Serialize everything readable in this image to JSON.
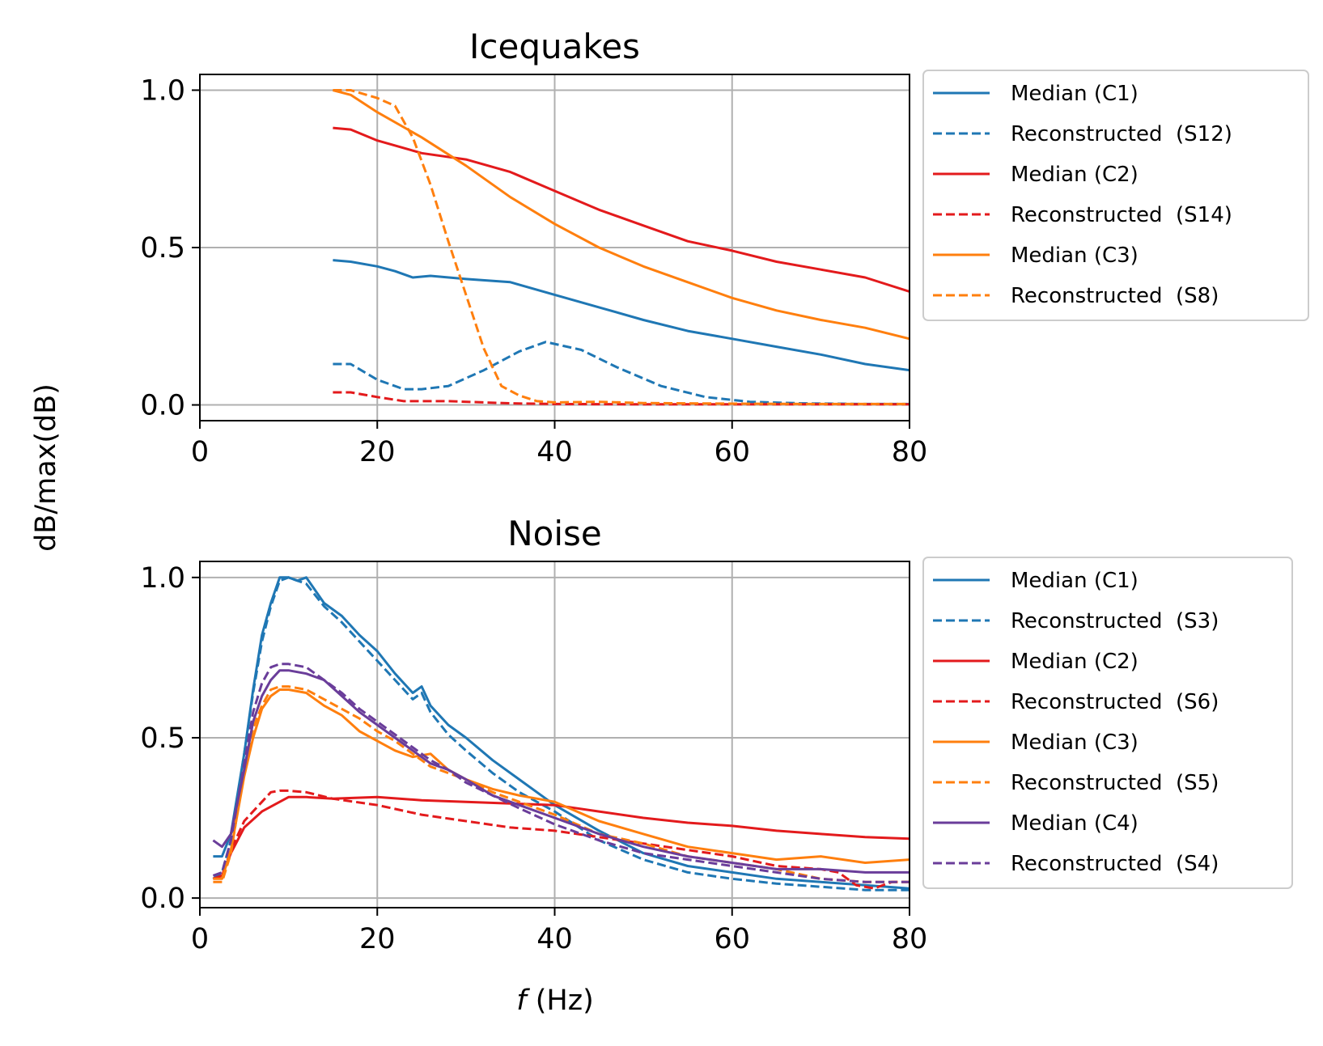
{
  "figure": {
    "ylabel": "dB/max(dB)",
    "xlabel_italic": "f",
    "xlabel_rest": " (Hz)"
  },
  "colors": {
    "blue": "#1f77b4",
    "red": "#e31a1c",
    "orange": "#ff7f0e",
    "purple": "#6a3d9a",
    "grid": "#b0b0b0"
  },
  "chart_data": [
    {
      "type": "line",
      "title": "Icequakes",
      "xlim": [
        0,
        80
      ],
      "ylim": [
        -0.05,
        1.05
      ],
      "xticks": [
        0,
        20,
        40,
        60,
        80
      ],
      "yticks": [
        0.0,
        0.5,
        1.0
      ],
      "grid": true,
      "legend_position": "outside-right",
      "series": [
        {
          "name": "Median (C1)",
          "color": "blue",
          "dash": false,
          "x": [
            15,
            17,
            20,
            22,
            24,
            26,
            30,
            35,
            40,
            45,
            50,
            55,
            60,
            65,
            70,
            75,
            80
          ],
          "y": [
            0.46,
            0.455,
            0.44,
            0.425,
            0.405,
            0.41,
            0.4,
            0.39,
            0.35,
            0.31,
            0.27,
            0.235,
            0.21,
            0.185,
            0.16,
            0.13,
            0.11
          ]
        },
        {
          "name": "Reconstructed  (S12)",
          "color": "blue",
          "dash": true,
          "x": [
            15,
            17,
            20,
            23,
            25,
            28,
            32,
            36,
            39,
            43,
            47,
            52,
            57,
            62,
            68,
            75,
            80
          ],
          "y": [
            0.13,
            0.13,
            0.08,
            0.05,
            0.05,
            0.06,
            0.11,
            0.17,
            0.2,
            0.175,
            0.12,
            0.06,
            0.025,
            0.01,
            0.005,
            0.003,
            0.003
          ]
        },
        {
          "name": "Median (C2)",
          "color": "red",
          "dash": false,
          "x": [
            15,
            17,
            20,
            25,
            30,
            35,
            40,
            45,
            50,
            55,
            60,
            65,
            70,
            75,
            80
          ],
          "y": [
            0.88,
            0.875,
            0.84,
            0.8,
            0.78,
            0.74,
            0.68,
            0.62,
            0.57,
            0.52,
            0.49,
            0.455,
            0.43,
            0.405,
            0.36
          ]
        },
        {
          "name": "Reconstructed  (S14)",
          "color": "red",
          "dash": true,
          "x": [
            15,
            17,
            20,
            23,
            28,
            35,
            40,
            50,
            60,
            70,
            80
          ],
          "y": [
            0.04,
            0.04,
            0.025,
            0.012,
            0.012,
            0.005,
            0.003,
            0.002,
            0.002,
            0.002,
            0.002
          ]
        },
        {
          "name": "Median (C3)",
          "color": "orange",
          "dash": false,
          "x": [
            15,
            17,
            20,
            25,
            30,
            35,
            40,
            45,
            50,
            55,
            60,
            65,
            70,
            75,
            80
          ],
          "y": [
            1.0,
            0.985,
            0.93,
            0.85,
            0.76,
            0.66,
            0.575,
            0.5,
            0.44,
            0.39,
            0.34,
            0.3,
            0.27,
            0.245,
            0.21
          ]
        },
        {
          "name": "Reconstructed  (S8)",
          "color": "orange",
          "dash": true,
          "x": [
            15,
            17,
            20,
            22,
            24,
            26,
            28,
            30,
            32,
            34,
            36,
            38,
            40,
            45,
            50,
            60,
            70,
            80
          ],
          "y": [
            1.0,
            1.0,
            0.975,
            0.95,
            0.85,
            0.7,
            0.52,
            0.35,
            0.18,
            0.06,
            0.03,
            0.012,
            0.008,
            0.01,
            0.006,
            0.004,
            0.003,
            0.003
          ]
        }
      ]
    },
    {
      "type": "line",
      "title": "Noise",
      "xlabel": "f (Hz)",
      "xlim": [
        0,
        80
      ],
      "ylim": [
        -0.03,
        1.05
      ],
      "xticks": [
        0,
        20,
        40,
        60,
        80
      ],
      "yticks": [
        0.0,
        0.5,
        1.0
      ],
      "grid": true,
      "legend_position": "outside-right",
      "series": [
        {
          "name": "Median (C1)",
          "color": "blue",
          "dash": false,
          "x": [
            1.5,
            2.5,
            3.5,
            5,
            6,
            7,
            8,
            9,
            10,
            11,
            12,
            14,
            16,
            18,
            20,
            22,
            24,
            25,
            26,
            28,
            30,
            33,
            36,
            40,
            45,
            50,
            55,
            60,
            65,
            70,
            75,
            80
          ],
          "y": [
            0.13,
            0.13,
            0.2,
            0.45,
            0.65,
            0.82,
            0.92,
            1.0,
            1.0,
            0.99,
            1.0,
            0.92,
            0.88,
            0.82,
            0.77,
            0.7,
            0.64,
            0.66,
            0.6,
            0.54,
            0.5,
            0.43,
            0.37,
            0.29,
            0.21,
            0.14,
            0.1,
            0.08,
            0.06,
            0.05,
            0.04,
            0.03
          ]
        },
        {
          "name": "Reconstructed  (S3)",
          "color": "blue",
          "dash": true,
          "x": [
            1.5,
            2.5,
            3.5,
            5,
            6,
            7,
            8,
            9,
            10,
            11,
            12,
            14,
            16,
            18,
            20,
            22,
            24,
            25,
            26,
            28,
            30,
            33,
            36,
            40,
            45,
            50,
            55,
            60,
            65,
            70,
            75,
            80
          ],
          "y": [
            0.06,
            0.08,
            0.18,
            0.45,
            0.64,
            0.8,
            0.91,
            0.99,
            1.0,
            0.99,
            0.98,
            0.91,
            0.86,
            0.8,
            0.74,
            0.68,
            0.62,
            0.64,
            0.58,
            0.51,
            0.46,
            0.39,
            0.33,
            0.27,
            0.18,
            0.12,
            0.08,
            0.06,
            0.045,
            0.035,
            0.025,
            0.025
          ]
        },
        {
          "name": "Median (C2)",
          "color": "red",
          "dash": false,
          "x": [
            1.5,
            2.5,
            3.5,
            5,
            7,
            9,
            10,
            12,
            15,
            20,
            25,
            30,
            35,
            40,
            45,
            50,
            55,
            60,
            65,
            70,
            75,
            80
          ],
          "y": [
            0.06,
            0.07,
            0.14,
            0.22,
            0.27,
            0.3,
            0.315,
            0.315,
            0.31,
            0.315,
            0.305,
            0.3,
            0.295,
            0.29,
            0.27,
            0.25,
            0.235,
            0.225,
            0.21,
            0.2,
            0.19,
            0.185
          ]
        },
        {
          "name": "Reconstructed  (S6)",
          "color": "red",
          "dash": true,
          "x": [
            1.5,
            2.5,
            3.5,
            5,
            7,
            8,
            9,
            10,
            12,
            15,
            20,
            25,
            30,
            35,
            40,
            45,
            50,
            55,
            60,
            65,
            70,
            72,
            74,
            76,
            78,
            80
          ],
          "y": [
            0.06,
            0.07,
            0.15,
            0.24,
            0.3,
            0.33,
            0.335,
            0.335,
            0.33,
            0.31,
            0.29,
            0.26,
            0.24,
            0.22,
            0.21,
            0.19,
            0.17,
            0.15,
            0.13,
            0.1,
            0.09,
            0.08,
            0.04,
            0.03,
            0.05,
            0.05
          ]
        },
        {
          "name": "Median (C3)",
          "color": "orange",
          "dash": false,
          "x": [
            1.5,
            2.5,
            3.5,
            5,
            6,
            7,
            8,
            9,
            10,
            12,
            14,
            16,
            18,
            20,
            22,
            24,
            26,
            28,
            30,
            33,
            36,
            40,
            45,
            50,
            55,
            60,
            65,
            70,
            75,
            80
          ],
          "y": [
            0.06,
            0.06,
            0.15,
            0.38,
            0.5,
            0.59,
            0.63,
            0.65,
            0.65,
            0.64,
            0.6,
            0.57,
            0.52,
            0.49,
            0.46,
            0.44,
            0.45,
            0.4,
            0.37,
            0.34,
            0.32,
            0.3,
            0.24,
            0.2,
            0.16,
            0.14,
            0.12,
            0.13,
            0.11,
            0.12
          ]
        },
        {
          "name": "Reconstructed  (S5)",
          "color": "orange",
          "dash": true,
          "x": [
            1.5,
            2.5,
            3.5,
            5,
            6,
            7,
            8,
            9,
            10,
            12,
            14,
            16,
            18,
            20,
            22,
            24,
            26,
            28,
            30,
            33,
            36,
            40,
            45,
            50,
            55,
            60,
            65,
            70,
            75,
            80
          ],
          "y": [
            0.05,
            0.05,
            0.14,
            0.4,
            0.53,
            0.6,
            0.65,
            0.66,
            0.66,
            0.65,
            0.62,
            0.59,
            0.56,
            0.52,
            0.49,
            0.45,
            0.41,
            0.39,
            0.37,
            0.33,
            0.3,
            0.26,
            0.2,
            0.17,
            0.13,
            0.11,
            0.09,
            0.06,
            0.05,
            0.05
          ]
        },
        {
          "name": "Median (C4)",
          "color": "purple",
          "dash": false,
          "x": [
            1.5,
            2.5,
            3.5,
            5,
            6,
            7,
            8,
            9,
            10,
            12,
            14,
            16,
            18,
            20,
            22,
            24,
            26,
            28,
            30,
            33,
            36,
            40,
            45,
            50,
            55,
            60,
            65,
            70,
            75,
            80
          ],
          "y": [
            0.18,
            0.16,
            0.2,
            0.4,
            0.55,
            0.63,
            0.68,
            0.71,
            0.71,
            0.7,
            0.68,
            0.63,
            0.58,
            0.54,
            0.5,
            0.46,
            0.42,
            0.4,
            0.37,
            0.32,
            0.29,
            0.25,
            0.2,
            0.16,
            0.13,
            0.11,
            0.09,
            0.09,
            0.08,
            0.08
          ]
        },
        {
          "name": "Reconstructed  (S4)",
          "color": "purple",
          "dash": true,
          "x": [
            1.5,
            2.5,
            3.5,
            5,
            6,
            7,
            8,
            9,
            10,
            12,
            14,
            16,
            18,
            20,
            22,
            24,
            26,
            28,
            30,
            33,
            36,
            40,
            45,
            50,
            55,
            60,
            65,
            70,
            75,
            80
          ],
          "y": [
            0.07,
            0.08,
            0.18,
            0.42,
            0.58,
            0.67,
            0.72,
            0.73,
            0.73,
            0.72,
            0.68,
            0.64,
            0.59,
            0.55,
            0.51,
            0.47,
            0.43,
            0.4,
            0.36,
            0.32,
            0.28,
            0.23,
            0.18,
            0.14,
            0.12,
            0.1,
            0.08,
            0.06,
            0.05,
            0.05
          ]
        }
      ]
    }
  ]
}
